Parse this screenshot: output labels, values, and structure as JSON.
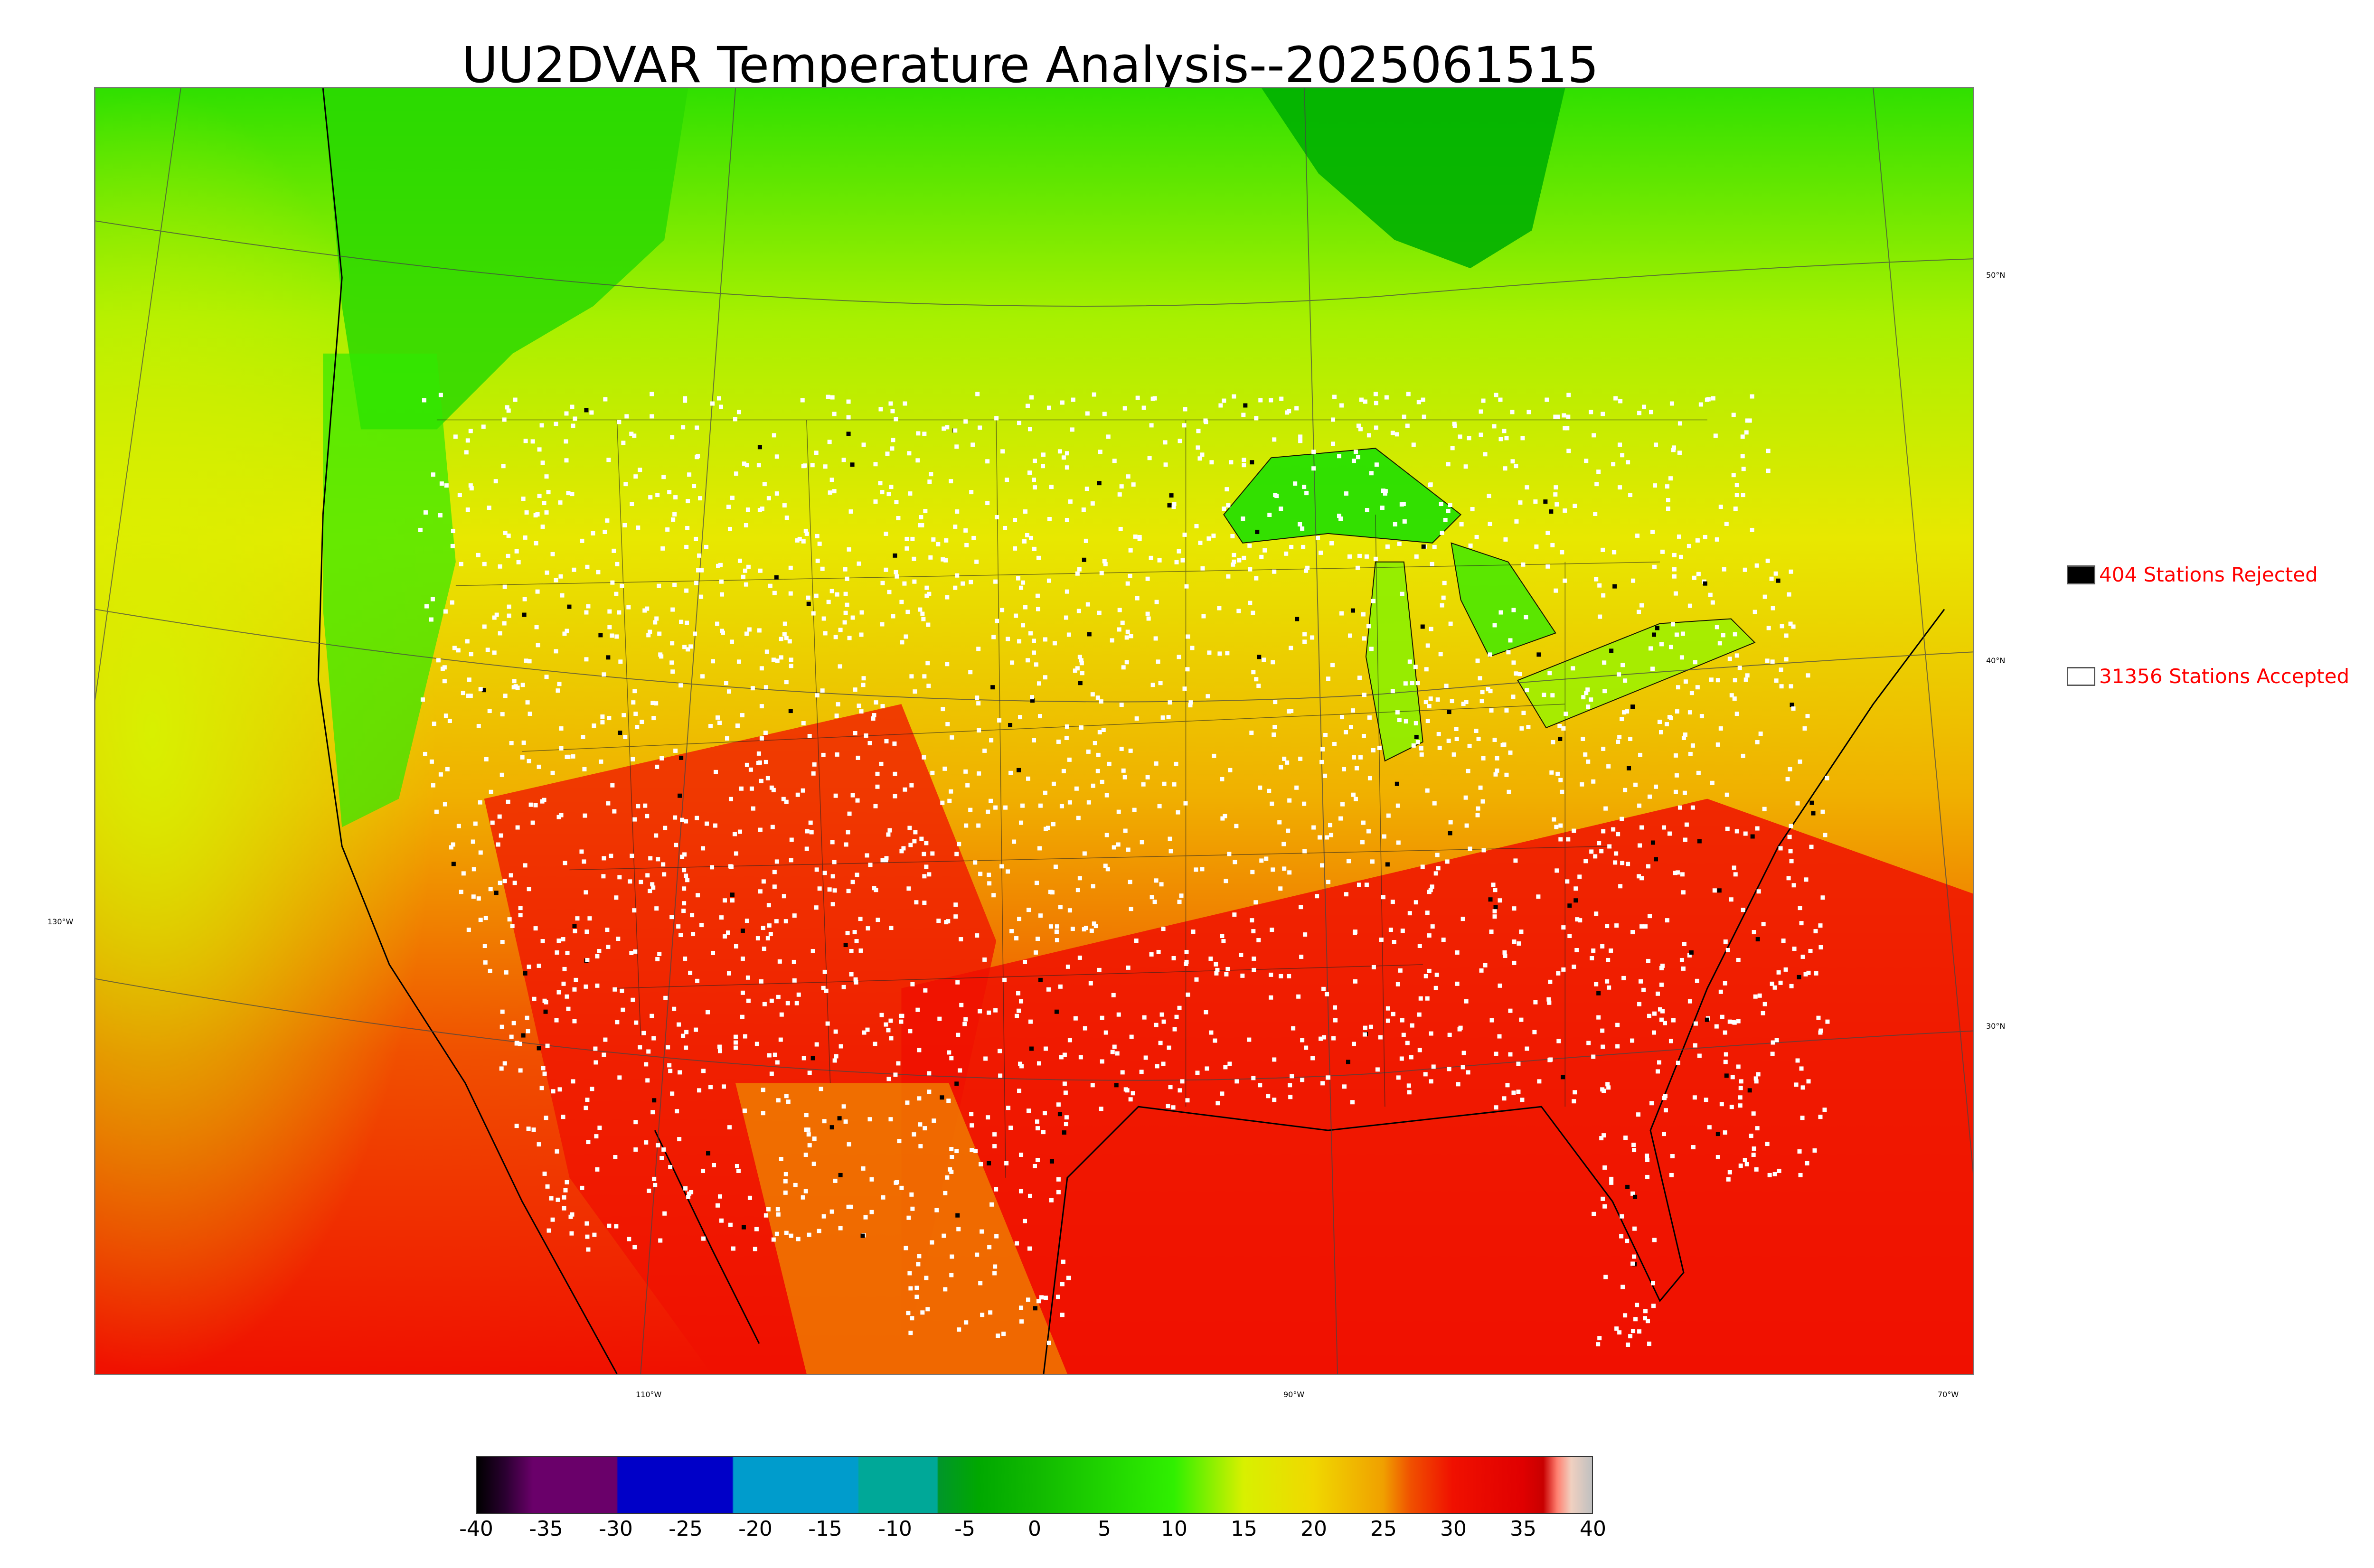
{
  "title": "UU2DVAR Temperature Analysis--2025061515",
  "map": {
    "projection": "lambert-conformal",
    "longitude_labels": [
      {
        "text": "110°W",
        "lon": -110
      },
      {
        "text": "90°W",
        "lon": -90
      },
      {
        "text": "70°W",
        "lon": -70
      }
    ],
    "latitude_labels_right": [
      {
        "text": "50°N",
        "lat": 50
      },
      {
        "text": "40°N",
        "lat": 40
      },
      {
        "text": "30°N",
        "lat": 30
      }
    ],
    "longitude_label_left": {
      "text": "130°W",
      "lon": -130
    },
    "features": [
      "coastlines",
      "state-borders",
      "great-lakes",
      "graticule"
    ],
    "colors": {
      "cold": "#00b400",
      "cool": "#4cf000",
      "mild": "#d4f500",
      "warm": "#f5c800",
      "hot": "#f57a00",
      "very-hot": "#f50000",
      "accepted_marker": "#ffffff",
      "rejected_marker": "#000000"
    }
  },
  "legend": {
    "rejected": {
      "label": "404 Stations Rejected",
      "count": 404,
      "swatch": "#000000"
    },
    "accepted": {
      "label": "31356 Stations Accepted",
      "count": 31356,
      "swatch": "#ffffff"
    }
  },
  "colorbar": {
    "min": -40,
    "max": 40,
    "ticks": [
      "-40",
      "-35",
      "-30",
      "-25",
      "-20",
      "-15",
      "-10",
      "-5",
      "0",
      "5",
      "10",
      "15",
      "20",
      "25",
      "30",
      "35",
      "40"
    ],
    "stops": [
      {
        "value": -40,
        "color": "#000000"
      },
      {
        "value": -38,
        "color": "#2a0030"
      },
      {
        "value": -36,
        "color": "#6a006a"
      },
      {
        "value": -30,
        "color": "#6a006a"
      },
      {
        "value": -29.9,
        "color": "#0000c8"
      },
      {
        "value": -21.7,
        "color": "#0000c8"
      },
      {
        "value": -21.6,
        "color": "#009ccc"
      },
      {
        "value": -12.7,
        "color": "#009ccc"
      },
      {
        "value": -12.6,
        "color": "#00a898"
      },
      {
        "value": -7,
        "color": "#00a898"
      },
      {
        "value": -6.9,
        "color": "#00962a"
      },
      {
        "value": -4,
        "color": "#00a800"
      },
      {
        "value": 0,
        "color": "#10b800"
      },
      {
        "value": 5,
        "color": "#20d400"
      },
      {
        "value": 10,
        "color": "#30f000"
      },
      {
        "value": 15,
        "color": "#d8f000"
      },
      {
        "value": 20,
        "color": "#f0d800"
      },
      {
        "value": 25,
        "color": "#f0a000"
      },
      {
        "value": 27,
        "color": "#f05000"
      },
      {
        "value": 30,
        "color": "#f01000"
      },
      {
        "value": 35,
        "color": "#e00000"
      },
      {
        "value": 36.5,
        "color": "#c80000"
      },
      {
        "value": 37.5,
        "color": "#ff8070"
      },
      {
        "value": 38.5,
        "color": "#f0d0c0"
      },
      {
        "value": 40,
        "color": "#c0c0c0"
      }
    ]
  }
}
